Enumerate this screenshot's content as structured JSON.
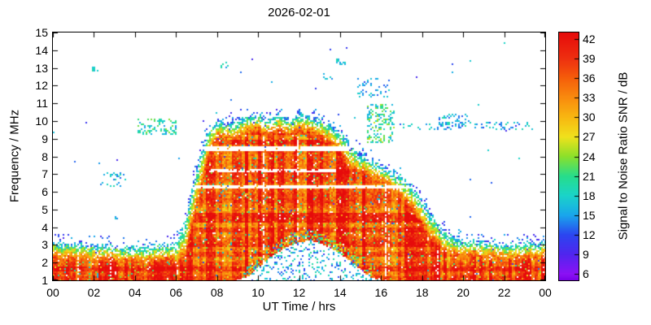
{
  "chart_data": {
    "type": "heatmap",
    "title": "2026-02-01",
    "xlabel": "UT Time / hrs",
    "ylabel": "Frequency / MHz",
    "x_range": [
      0,
      24
    ],
    "y_range": [
      1,
      15
    ],
    "x_tick_values": [
      0,
      2,
      4,
      6,
      8,
      10,
      12,
      14,
      16,
      18,
      20,
      22,
      24
    ],
    "x_tick_labels": [
      "00",
      "02",
      "04",
      "06",
      "08",
      "10",
      "12",
      "14",
      "16",
      "18",
      "20",
      "22",
      "00"
    ],
    "y_tick_values": [
      1,
      2,
      3,
      4,
      5,
      6,
      7,
      8,
      9,
      10,
      11,
      12,
      13,
      14,
      15
    ],
    "colorbar": {
      "label": "Signal to Noise Ratio SNR / dB",
      "tick_values": [
        6,
        9,
        12,
        15,
        18,
        21,
        24,
        27,
        30,
        33,
        36,
        39,
        42
      ],
      "range": [
        5,
        43
      ],
      "colormap": "rainbow",
      "color_stops": [
        [
          5,
          "#7a00e8"
        ],
        [
          6,
          "#8b12f5"
        ],
        [
          9,
          "#5026ee"
        ],
        [
          12,
          "#2b46f0"
        ],
        [
          15,
          "#19a7ec"
        ],
        [
          18,
          "#1ad4c9"
        ],
        [
          21,
          "#27dd8a"
        ],
        [
          24,
          "#8ce02a"
        ],
        [
          27,
          "#f0e11c"
        ],
        [
          30,
          "#f8b711"
        ],
        [
          33,
          "#f98b0e"
        ],
        [
          36,
          "#f55e0a"
        ],
        [
          39,
          "#ee2f10"
        ],
        [
          43,
          "#e60b0b"
        ]
      ]
    },
    "model": {
      "seed": 1337,
      "t_step": 0.5,
      "fmax_envelope": [
        3.2,
        3.15,
        3.1,
        3.1,
        3.05,
        3.0,
        3.0,
        2.95,
        2.95,
        2.95,
        3.0,
        3.05,
        3.2,
        4.6,
        7.5,
        9.4,
        10.1,
        9.9,
        10.1,
        10.3,
        10.4,
        10.1,
        10.4,
        10.1,
        10.5,
        10.3,
        10.1,
        9.9,
        9.5,
        8.7,
        8.2,
        7.9,
        7.6,
        7.3,
        6.9,
        6.3,
        5.6,
        4.7,
        3.9,
        3.5,
        3.3,
        3.25,
        3.2,
        3.15,
        3.1,
        3.1,
        3.1,
        3.15,
        3.2
      ],
      "absorption_cutoff": [
        1,
        1,
        1,
        1,
        1,
        1,
        1,
        1,
        1,
        1,
        1,
        1,
        1,
        1,
        1,
        1,
        1,
        1,
        1,
        1.2,
        1.7,
        2.2,
        2.6,
        2.95,
        3.15,
        3.25,
        3.1,
        2.85,
        2.5,
        2.1,
        1.6,
        1.15,
        1,
        1,
        1,
        1,
        1,
        1,
        1,
        1,
        1,
        1,
        1,
        1,
        1,
        1,
        1,
        1,
        1
      ],
      "core_snr": [
        34,
        42
      ],
      "edge_width": 0.9,
      "notches": [
        {
          "t": [
            6.8,
            19.3
          ],
          "f": [
            6.18,
            6.4
          ],
          "p": 0.93
        },
        {
          "t": [
            6.8,
            19.3
          ],
          "f": [
            8.3,
            8.55
          ],
          "p": 0.93
        },
        {
          "t": [
            7.6,
            13.8
          ],
          "f": [
            7.08,
            7.26
          ],
          "p": 0.8
        }
      ],
      "scatter_clusters": [
        {
          "t": [
            1.9,
            2.2
          ],
          "f": [
            12.8,
            13.05
          ],
          "density": 0.45,
          "snr": [
            14,
            20
          ]
        },
        {
          "t": [
            2.4,
            3.6
          ],
          "f": [
            6.3,
            7.1
          ],
          "density": 0.22,
          "snr": [
            12,
            20
          ]
        },
        {
          "t": [
            2.9,
            3.15
          ],
          "f": [
            4.35,
            4.7
          ],
          "density": 0.3,
          "snr": [
            14,
            18
          ]
        },
        {
          "t": [
            4.1,
            6.0
          ],
          "f": [
            9.2,
            10.1
          ],
          "density": 0.28,
          "snr": [
            14,
            24
          ]
        },
        {
          "t": [
            8.2,
            8.55
          ],
          "f": [
            12.95,
            13.3
          ],
          "density": 0.4,
          "snr": [
            14,
            20
          ]
        },
        {
          "t": [
            13.1,
            13.7
          ],
          "f": [
            12.3,
            12.7
          ],
          "density": 0.25,
          "snr": [
            14,
            18
          ]
        },
        {
          "t": [
            13.8,
            14.25
          ],
          "f": [
            13.2,
            13.5
          ],
          "density": 0.35,
          "snr": [
            14,
            20
          ]
        },
        {
          "t": [
            14.8,
            16.4
          ],
          "f": [
            11.3,
            12.4
          ],
          "density": 0.16,
          "snr": [
            12,
            18
          ]
        },
        {
          "t": [
            15.3,
            16.7
          ],
          "f": [
            8.8,
            11.0
          ],
          "density": 0.3,
          "snr": [
            14,
            26
          ]
        },
        {
          "t": [
            16.9,
            23.4
          ],
          "f": [
            9.5,
            9.95
          ],
          "density": 0.16,
          "snr": [
            12,
            20
          ]
        },
        {
          "t": [
            18.8,
            20.3
          ],
          "f": [
            9.7,
            10.4
          ],
          "density": 0.3,
          "snr": [
            12,
            20
          ]
        }
      ]
    }
  }
}
